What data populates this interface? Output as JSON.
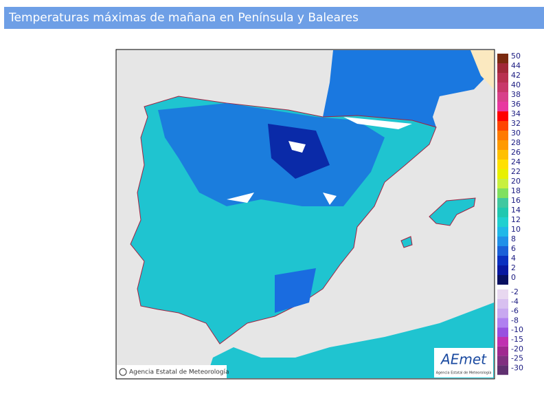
{
  "header": {
    "title": "Temperaturas máximas de mañana en Península y Baleares"
  },
  "legend": {
    "positive": [
      {
        "label": 50,
        "color": "#7a2a10"
      },
      {
        "label": 44,
        "color": "#a02838"
      },
      {
        "label": 42,
        "color": "#b83050"
      },
      {
        "label": 40,
        "color": "#c8386a"
      },
      {
        "label": 38,
        "color": "#d8408a"
      },
      {
        "label": 36,
        "color": "#e838a0"
      },
      {
        "label": 34,
        "color": "#ff0000"
      },
      {
        "label": 32,
        "color": "#ff4400"
      },
      {
        "label": 30,
        "color": "#ff7a00"
      },
      {
        "label": 28,
        "color": "#ff9a00"
      },
      {
        "label": 26,
        "color": "#ffc000"
      },
      {
        "label": 24,
        "color": "#ffe000"
      },
      {
        "label": 22,
        "color": "#e8f000"
      },
      {
        "label": 20,
        "color": "#c8f040"
      },
      {
        "label": 18,
        "color": "#80e060"
      },
      {
        "label": 16,
        "color": "#40c8a0"
      },
      {
        "label": 14,
        "color": "#20c8b0"
      },
      {
        "label": 12,
        "color": "#20d0d0"
      },
      {
        "label": 10,
        "color": "#20b8e8"
      },
      {
        "label": 8,
        "color": "#2090e8"
      },
      {
        "label": 6,
        "color": "#1a60d8"
      },
      {
        "label": 4,
        "color": "#0a30c0"
      },
      {
        "label": 2,
        "color": "#0818a0"
      },
      {
        "label": 0,
        "color": "#081060"
      }
    ],
    "negative": [
      {
        "label": -2,
        "color": "#e8d8f0"
      },
      {
        "label": -4,
        "color": "#d8c0f0"
      },
      {
        "label": -6,
        "color": "#c8a8f0"
      },
      {
        "label": -8,
        "color": "#b080f0"
      },
      {
        "label": -10,
        "color": "#9850e0"
      },
      {
        "label": -15,
        "color": "#c030b0"
      },
      {
        "label": -20,
        "color": "#a02890"
      },
      {
        "label": -25,
        "color": "#803080"
      },
      {
        "label": -30,
        "color": "#603070"
      }
    ]
  },
  "map": {
    "credit": "Agencia Estatal de Meteorología",
    "logo": "AEmet",
    "logo_caption": "Agencia Estatal de Meteorología"
  }
}
